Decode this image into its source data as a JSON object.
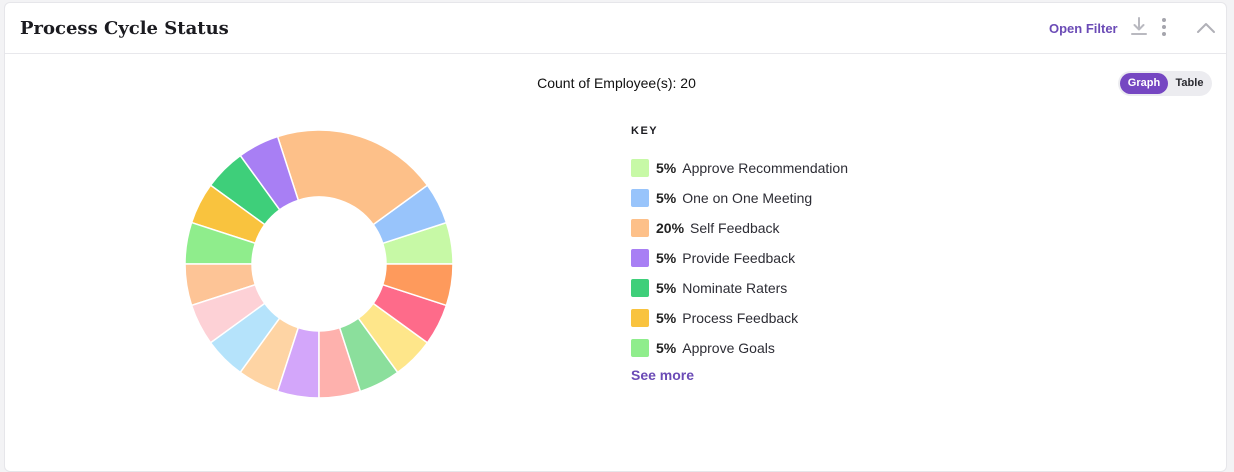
{
  "header": {
    "title": "Process Cycle Status",
    "open_filter_label": "Open Filter",
    "icons": [
      "download-icon",
      "more-vertical-icon",
      "chevron-up-icon"
    ]
  },
  "summary": {
    "count_text": "Count of Employee(s): 20"
  },
  "view_toggle": {
    "graph_label": "Graph",
    "table_label": "Table",
    "selected": "Graph"
  },
  "legend": {
    "title": "KEY",
    "items": [
      {
        "pct": "5%",
        "label": "Approve Recommendation",
        "color": "#c7f9a6"
      },
      {
        "pct": "5%",
        "label": "One on One Meeting",
        "color": "#98c4fb"
      },
      {
        "pct": "20%",
        "label": "Self Feedback",
        "color": "#fdc089"
      },
      {
        "pct": "5%",
        "label": "Provide Feedback",
        "color": "#a87ff4"
      },
      {
        "pct": "5%",
        "label": "Nominate Raters",
        "color": "#3ecf7a"
      },
      {
        "pct": "5%",
        "label": "Process Feedback",
        "color": "#f9c33e"
      },
      {
        "pct": "5%",
        "label": "Approve Goals",
        "color": "#8fed8c"
      }
    ],
    "see_more_label": "See more"
  },
  "chart_data": {
    "type": "pie",
    "donut": true,
    "slices": [
      {
        "value": 5,
        "color": "#c7f9a6"
      },
      {
        "value": 5,
        "color": "#98c4fb"
      },
      {
        "value": 20,
        "color": "#fdc089"
      },
      {
        "value": 5,
        "color": "#a87ff4"
      },
      {
        "value": 5,
        "color": "#3ecf7a"
      },
      {
        "value": 5,
        "color": "#f9c33e"
      },
      {
        "value": 5,
        "color": "#8fed8c"
      },
      {
        "value": 5,
        "color": "#fdc496"
      },
      {
        "value": 5,
        "color": "#fdd1d6"
      },
      {
        "value": 5,
        "color": "#b5e3fb"
      },
      {
        "value": 5,
        "color": "#fed4a4"
      },
      {
        "value": 5,
        "color": "#d3a6fa"
      },
      {
        "value": 5,
        "color": "#feb1ad"
      },
      {
        "value": 5,
        "color": "#8bdf9c"
      },
      {
        "value": 5,
        "color": "#fee68a"
      },
      {
        "value": 5,
        "color": "#fe6b8a"
      },
      {
        "value": 5,
        "color": "#fe9a5c"
      }
    ]
  }
}
